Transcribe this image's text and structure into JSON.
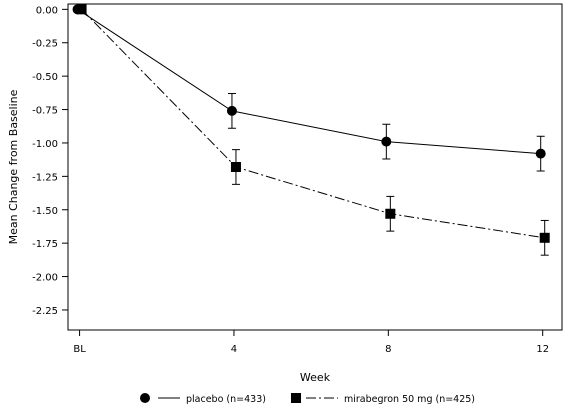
{
  "chart_data": {
    "type": "line",
    "xlabel": "Week",
    "ylabel": "Mean Change from Baseline",
    "x_ticks": [
      {
        "value": 0,
        "label": "BL"
      },
      {
        "value": 4,
        "label": "4"
      },
      {
        "value": 8,
        "label": "8"
      },
      {
        "value": 12,
        "label": "12"
      }
    ],
    "y_ticks": [
      "0.00",
      "-0.25",
      "-0.50",
      "-0.75",
      "-1.00",
      "-1.25",
      "-1.50",
      "-1.75",
      "-2.00",
      "-2.25"
    ],
    "xlim": [
      -0.3,
      12.5
    ],
    "ylim": [
      -2.4,
      0.04
    ],
    "grid": false,
    "legend_position": "bottom",
    "series": [
      {
        "name": "placebo (n=433)",
        "marker": "circle",
        "line_style": "solid",
        "x": [
          0,
          4,
          8,
          12
        ],
        "y": [
          0.0,
          -0.76,
          -0.99,
          -1.08
        ],
        "y_err": [
          0.0,
          0.13,
          0.13,
          0.13
        ]
      },
      {
        "name": "mirabegron 50 mg (n=425)",
        "marker": "square",
        "line_style": "dashdot",
        "x": [
          0,
          4,
          8,
          12
        ],
        "y": [
          0.0,
          -1.18,
          -1.53,
          -1.71
        ],
        "y_err": [
          0.0,
          0.13,
          0.13,
          0.13
        ]
      }
    ]
  }
}
